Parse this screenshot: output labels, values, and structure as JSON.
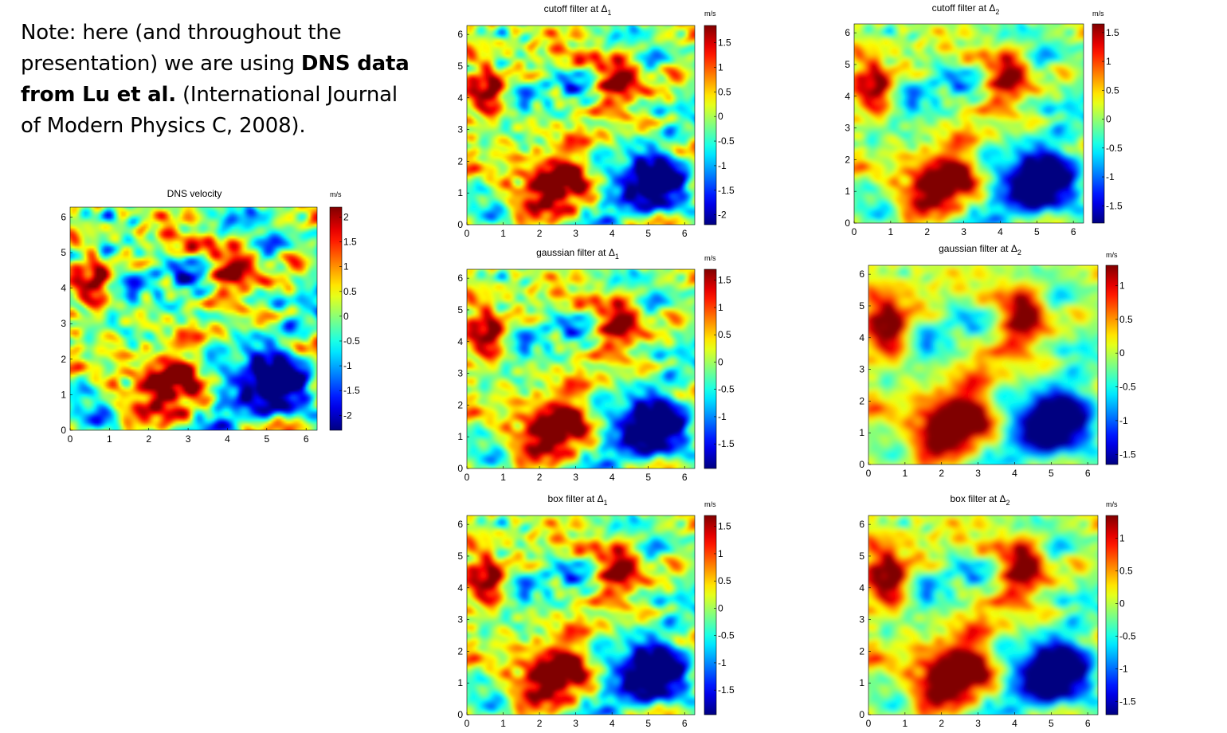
{
  "note": {
    "part1": "Note: here (and throughout the presentation) we are using ",
    "bold": "DNS data from Lu et al.",
    "part2": " (International Journal of Modern Physics C, 2008)."
  },
  "colormap": "jet",
  "chart_data": [
    {
      "id": "dns",
      "type": "heatmap",
      "title": "DNS velocity",
      "colorbar_label": "m/s",
      "xlim": [
        0,
        6.28
      ],
      "ylim": [
        0,
        6.28
      ],
      "xticks": [
        0,
        1,
        2,
        3,
        4,
        5,
        6
      ],
      "yticks": [
        0,
        1,
        2,
        3,
        4,
        5,
        6
      ],
      "clim": [
        -2.3,
        2.2
      ],
      "colorbar_ticks": [
        2,
        1.5,
        1,
        0.5,
        0,
        -0.5,
        -1,
        -1.5,
        -2
      ],
      "smoothing": "none"
    },
    {
      "id": "cutoff1",
      "type": "heatmap",
      "title": "cutoff filter at Δ",
      "title_subscript": "1",
      "colorbar_label": "m/s",
      "xlim": [
        0,
        6.28
      ],
      "ylim": [
        0,
        6.28
      ],
      "xticks": [
        0,
        1,
        2,
        3,
        4,
        5,
        6
      ],
      "yticks": [
        0,
        1,
        2,
        3,
        4,
        5,
        6
      ],
      "clim": [
        -2.2,
        1.85
      ],
      "colorbar_ticks": [
        1.5,
        1,
        0.5,
        0,
        -0.5,
        -1,
        -1.5,
        -2
      ],
      "smoothing": "cutoff Δ1"
    },
    {
      "id": "cutoff2",
      "type": "heatmap",
      "title": "cutoff filter at Δ",
      "title_subscript": "2",
      "colorbar_label": "m/s",
      "xlim": [
        0,
        6.28
      ],
      "ylim": [
        0,
        6.28
      ],
      "xticks": [
        0,
        1,
        2,
        3,
        4,
        5,
        6
      ],
      "yticks": [
        0,
        1,
        2,
        3,
        4,
        5,
        6
      ],
      "clim": [
        -1.8,
        1.65
      ],
      "colorbar_ticks": [
        1.5,
        1,
        0.5,
        0,
        -0.5,
        -1,
        -1.5
      ],
      "smoothing": "cutoff Δ2"
    },
    {
      "id": "gauss1",
      "type": "heatmap",
      "title": "gaussian filter at Δ",
      "title_subscript": "1",
      "colorbar_label": "m/s",
      "xlim": [
        0,
        6.28
      ],
      "ylim": [
        0,
        6.28
      ],
      "xticks": [
        0,
        1,
        2,
        3,
        4,
        5,
        6
      ],
      "yticks": [
        0,
        1,
        2,
        3,
        4,
        5,
        6
      ],
      "clim": [
        -1.95,
        1.7
      ],
      "colorbar_ticks": [
        1.5,
        1,
        0.5,
        0,
        -0.5,
        -1,
        -1.5
      ],
      "smoothing": "gaussian Δ1"
    },
    {
      "id": "gauss2",
      "type": "heatmap",
      "title": "gaussian filter at Δ",
      "title_subscript": "2",
      "colorbar_label": "m/s",
      "xlim": [
        0,
        6.28
      ],
      "ylim": [
        0,
        6.28
      ],
      "xticks": [
        0,
        1,
        2,
        3,
        4,
        5,
        6
      ],
      "yticks": [
        0,
        1,
        2,
        3,
        4,
        5,
        6
      ],
      "clim": [
        -1.65,
        1.3
      ],
      "colorbar_ticks": [
        1,
        0.5,
        0,
        -0.5,
        -1,
        -1.5
      ],
      "smoothing": "gaussian Δ2"
    },
    {
      "id": "box1",
      "type": "heatmap",
      "title": "box filter at Δ",
      "title_subscript": "1",
      "colorbar_label": "m/s",
      "xlim": [
        0,
        6.28
      ],
      "ylim": [
        0,
        6.28
      ],
      "xticks": [
        0,
        1,
        2,
        3,
        4,
        5,
        6
      ],
      "yticks": [
        0,
        1,
        2,
        3,
        4,
        5,
        6
      ],
      "clim": [
        -1.95,
        1.7
      ],
      "colorbar_ticks": [
        1.5,
        1,
        0.5,
        0,
        -0.5,
        -1,
        -1.5
      ],
      "smoothing": "box Δ1"
    },
    {
      "id": "box2",
      "type": "heatmap",
      "title": "box filter at Δ",
      "title_subscript": "2",
      "colorbar_label": "m/s",
      "xlim": [
        0,
        6.28
      ],
      "ylim": [
        0,
        6.28
      ],
      "xticks": [
        0,
        1,
        2,
        3,
        4,
        5,
        6
      ],
      "yticks": [
        0,
        1,
        2,
        3,
        4,
        5,
        6
      ],
      "clim": [
        -1.7,
        1.35
      ],
      "colorbar_ticks": [
        1,
        0.5,
        0,
        -0.5,
        -1,
        -1.5
      ],
      "smoothing": "box Δ2"
    }
  ]
}
